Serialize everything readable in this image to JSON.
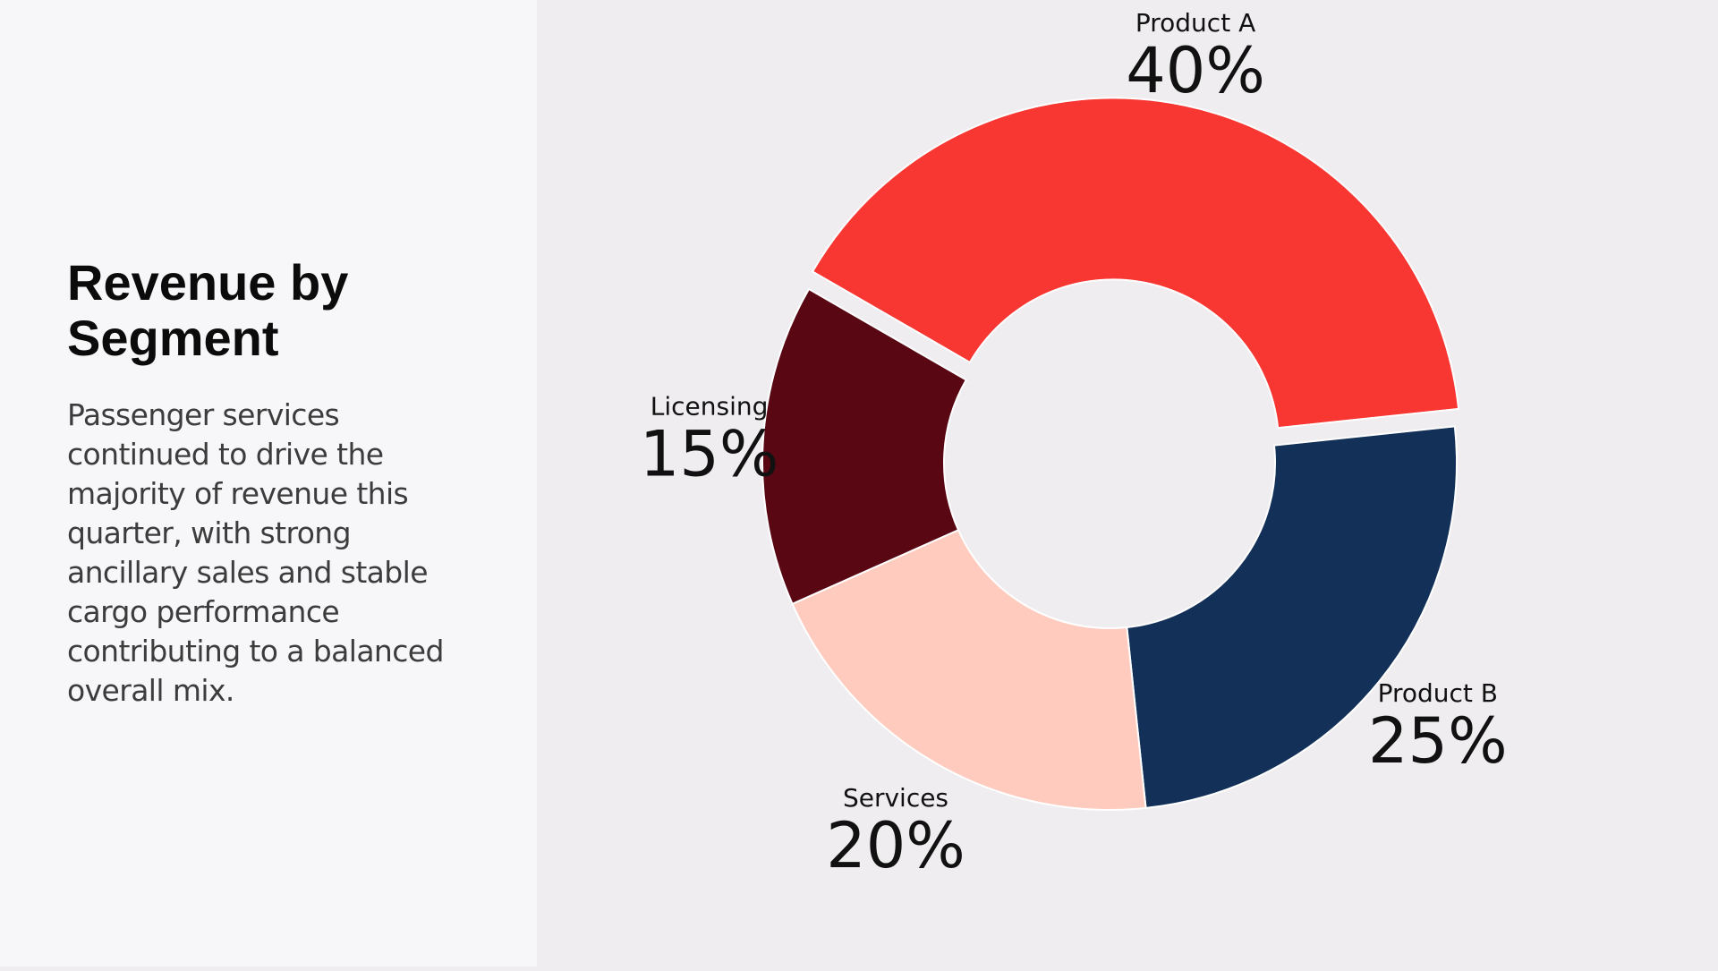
{
  "slide": {
    "title": "Revenue by Segment",
    "body": "Passenger services continued to drive the majority of revenue this quarter, with strong ancillary sales and stable cargo performance contributing to a balanced overall mix."
  },
  "chart_data": {
    "type": "pie",
    "style": "donut",
    "exploded": "Product A",
    "title": "",
    "segments": [
      {
        "label": "Product A",
        "value": 40,
        "display": "40%",
        "color": "#f83632"
      },
      {
        "label": "Product B",
        "value": 25,
        "display": "25%",
        "color": "#123058"
      },
      {
        "label": "Services",
        "value": 20,
        "display": "20%",
        "color": "#ffcbbe"
      },
      {
        "label": "Licensing",
        "value": 15,
        "display": "15%",
        "color": "#5a0714"
      }
    ]
  }
}
